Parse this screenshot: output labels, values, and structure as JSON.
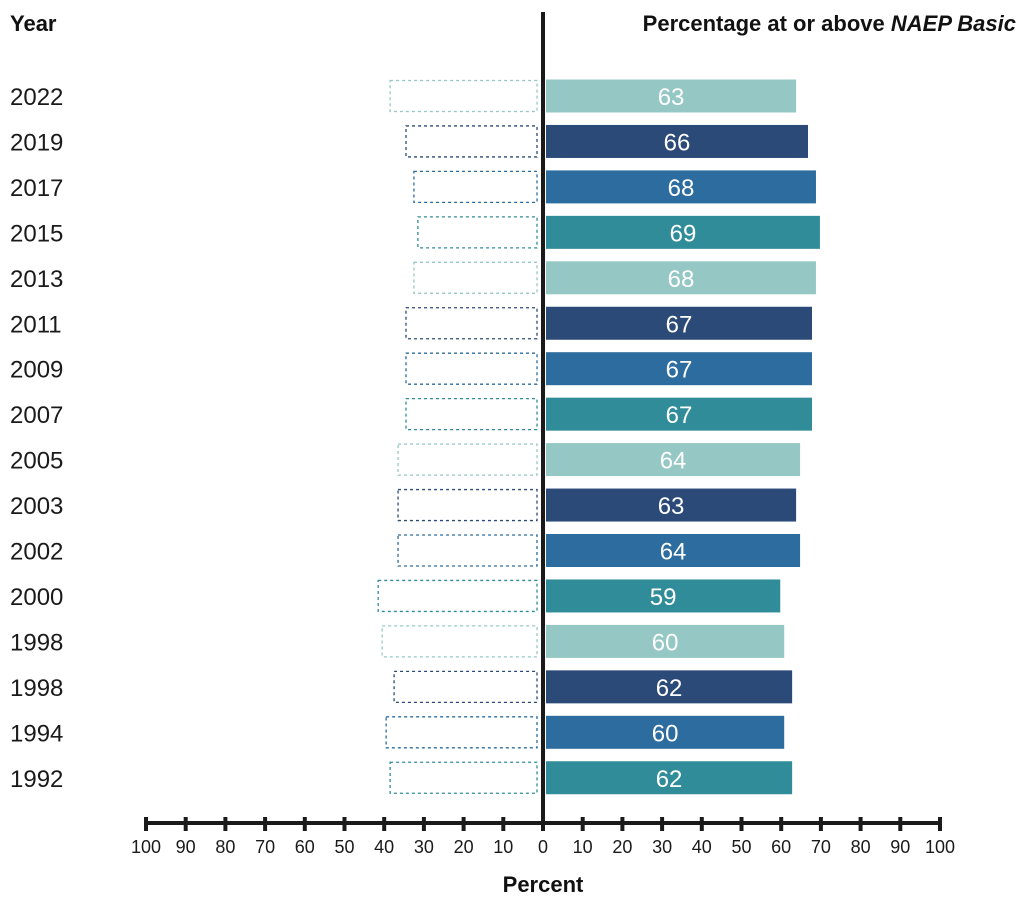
{
  "chart_data": {
    "type": "bar",
    "orientation": "horizontal-diverging",
    "header_left": "Year",
    "title_prefix": "Percentage at or above ",
    "title_emphasis": "NAEP Basic",
    "xlabel": "Percent",
    "xlim": [
      -100,
      100
    ],
    "ticks": [
      -100,
      -90,
      -80,
      -70,
      -60,
      -50,
      -40,
      -30,
      -20,
      -10,
      0,
      10,
      20,
      30,
      40,
      50,
      60,
      70,
      80,
      90,
      100
    ],
    "tick_labels": [
      "100",
      "90",
      "80",
      "70",
      "60",
      "50",
      "40",
      "30",
      "20",
      "10",
      "0",
      "10",
      "20",
      "30",
      "40",
      "50",
      "60",
      "70",
      "80",
      "90",
      "100"
    ],
    "categories": [
      "2022",
      "2019",
      "2017",
      "2015",
      "2013",
      "2011",
      "2009",
      "2007",
      "2005",
      "2003",
      "2002",
      "2000",
      "1998",
      "1998",
      "1994",
      "1992"
    ],
    "values": [
      63,
      66,
      68,
      69,
      68,
      67,
      67,
      67,
      64,
      63,
      64,
      59,
      60,
      62,
      60,
      62
    ],
    "below_basic_outline": [
      37,
      33,
      31,
      30,
      31,
      33,
      33,
      33,
      35,
      35,
      35,
      40,
      39,
      36,
      38,
      37
    ],
    "palette": [
      "#95c8c4",
      "#2c4a77",
      "#2c6c9e",
      "#318c99"
    ],
    "axis_color": "#1a1a1a"
  }
}
